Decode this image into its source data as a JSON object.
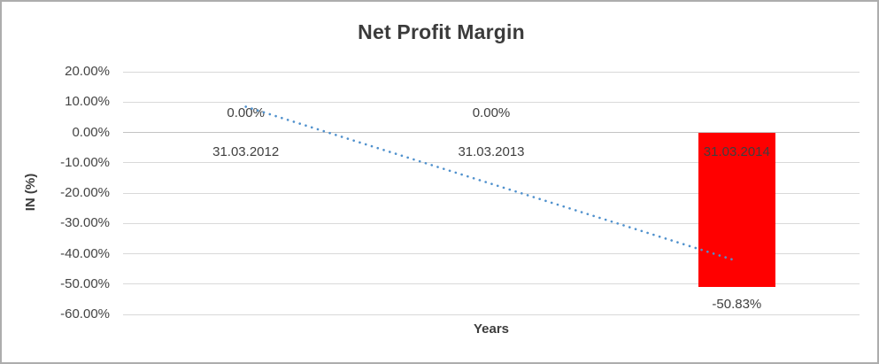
{
  "chart_data": {
    "type": "bar",
    "title": "Net Profit Margin",
    "xlabel": "Years",
    "ylabel": "IN (%)",
    "categories": [
      "31.03.2012",
      "31.03.2013",
      "31.03.2014"
    ],
    "values": [
      0,
      0,
      -50.83
    ],
    "data_labels": [
      "0.00%",
      "0.00%",
      "-50.83%"
    ],
    "ytick_values": [
      20,
      10,
      0,
      -10,
      -20,
      -30,
      -40,
      -50,
      -60
    ],
    "ytick_labels": [
      "20.00%",
      "10.00%",
      "0.00%",
      "-10.00%",
      "-20.00%",
      "-30.00%",
      "-40.00%",
      "-50.00%",
      "-60.00%"
    ],
    "ylim": [
      -60,
      20
    ],
    "grid": true,
    "legend": false,
    "bar_color": "#ff0000",
    "trendline": {
      "type": "linear",
      "style": "dotted",
      "color": "#5091cd",
      "start_value": 8.47,
      "end_value": -42.36
    }
  }
}
